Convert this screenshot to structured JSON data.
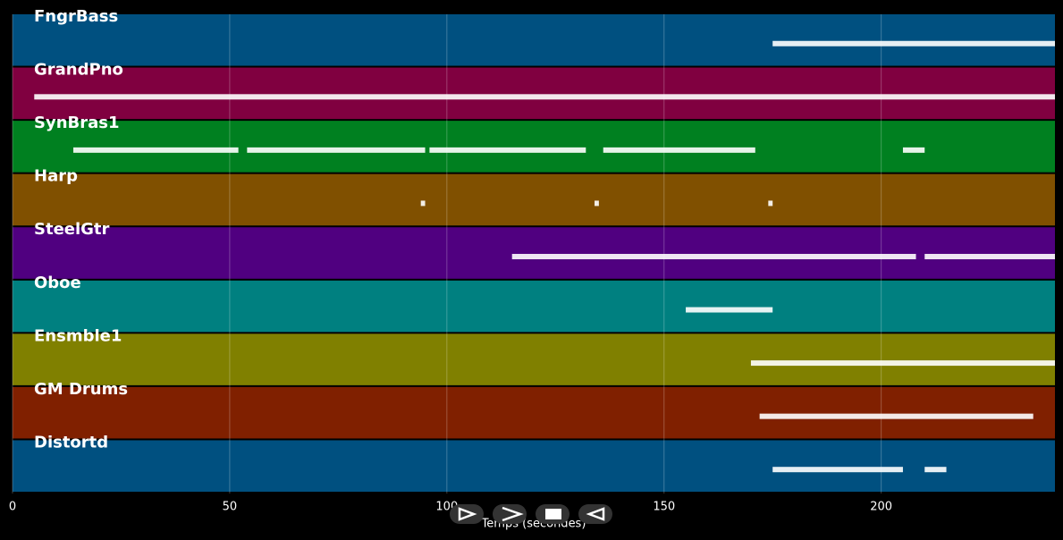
{
  "chart_data": {
    "type": "pianoroll",
    "xlabel": "Temps (secondes)",
    "xlim": [
      0,
      240
    ],
    "xticks": [
      0,
      50,
      100,
      150,
      200
    ],
    "grid": true,
    "note_color": "#ffffff",
    "tracks": [
      {
        "name": "FngrBass",
        "color": "#005080",
        "segments": [
          [
            175,
            240
          ]
        ]
      },
      {
        "name": "GrandPno",
        "color": "#800040",
        "segments": [
          [
            5,
            240
          ]
        ]
      },
      {
        "name": "SynBras1",
        "color": "#008020",
        "segments": [
          [
            14,
            52
          ],
          [
            54,
            95
          ],
          [
            96,
            132
          ],
          [
            136,
            171
          ],
          [
            205,
            210
          ]
        ]
      },
      {
        "name": "Harp",
        "color": "#805000",
        "segments": [
          [
            94,
            95
          ],
          [
            134,
            135
          ],
          [
            174,
            175
          ]
        ]
      },
      {
        "name": "SteelGtr",
        "color": "#500080",
        "segments": [
          [
            115,
            208
          ],
          [
            210,
            240
          ]
        ]
      },
      {
        "name": "Oboe",
        "color": "#008080",
        "segments": [
          [
            155,
            175
          ]
        ]
      },
      {
        "name": "Ensmble1",
        "color": "#808000",
        "segments": [
          [
            170,
            240
          ]
        ]
      },
      {
        "name": "GM Drums",
        "color": "#802000",
        "segments": [
          [
            172,
            235
          ]
        ]
      },
      {
        "name": "Distortd",
        "color": "#005080",
        "segments": [
          [
            175,
            205
          ],
          [
            210,
            215
          ]
        ]
      }
    ]
  }
}
